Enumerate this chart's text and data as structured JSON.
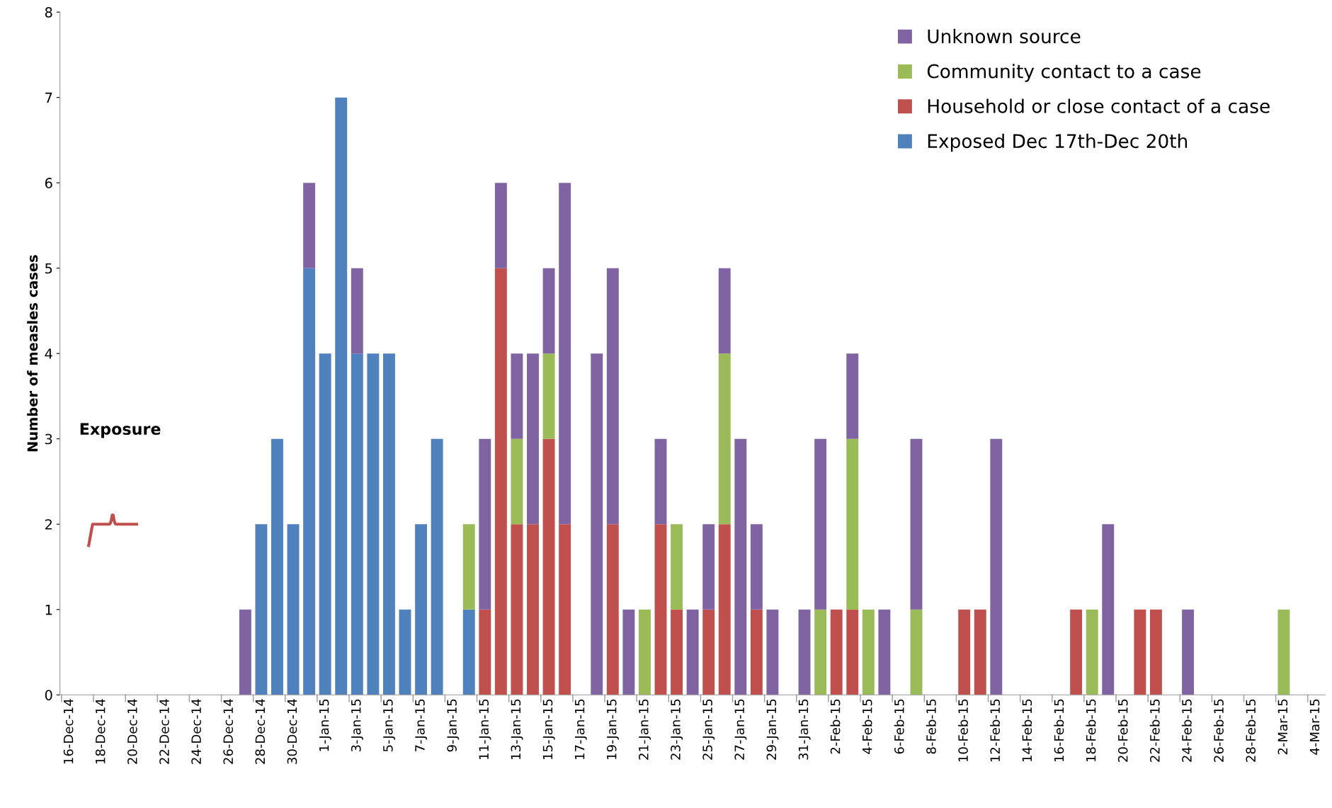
{
  "chart_data": {
    "type": "bar",
    "stacked": true,
    "ylabel": "Number of measles cases",
    "categories": [
      "16-Dec-14",
      null,
      "18-Dec-14",
      null,
      "20-Dec-14",
      null,
      "22-Dec-14",
      null,
      "24-Dec-14",
      null,
      "26-Dec-14",
      null,
      "28-Dec-14",
      null,
      "30-Dec-14",
      null,
      "1-Jan-15",
      null,
      "3-Jan-15",
      null,
      "5-Jan-15",
      null,
      "7-Jan-15",
      null,
      "9-Jan-15",
      null,
      "11-Jan-15",
      null,
      "13-Jan-15",
      null,
      "15-Jan-15",
      null,
      "17-Jan-15",
      null,
      "19-Jan-15",
      null,
      "21-Jan-15",
      null,
      "23-Jan-15",
      null,
      "25-Jan-15",
      null,
      "27-Jan-15",
      null,
      "29-Jan-15",
      null,
      "31-Jan-15",
      null,
      "2-Feb-15",
      null,
      "4-Feb-15",
      null,
      "6-Feb-15",
      null,
      "8-Feb-15",
      null,
      "10-Feb-15",
      null,
      "12-Feb-15",
      null,
      "14-Feb-15",
      null,
      "16-Feb-15",
      null,
      "18-Feb-15",
      null,
      "20-Feb-15",
      null,
      "22-Feb-15",
      null,
      "24-Feb-15",
      null,
      "26-Feb-15",
      null,
      "28-Feb-15",
      null,
      "2-Mar-15",
      null,
      "4-Mar-15"
    ],
    "series": [
      {
        "name": "Exposed Dec 17th-Dec 20th",
        "color": "#4f81bd",
        "values": [
          0,
          0,
          0,
          0,
          0,
          0,
          0,
          0,
          0,
          0,
          0,
          0,
          2,
          3,
          2,
          5,
          4,
          7,
          4,
          4,
          4,
          1,
          2,
          3,
          0,
          1,
          0,
          0,
          0,
          0,
          0,
          0,
          0,
          0,
          0,
          0,
          0,
          0,
          0,
          0,
          0,
          0,
          0,
          0,
          0,
          0,
          0,
          0,
          0,
          0,
          0,
          0,
          0,
          0,
          0,
          0,
          0,
          0,
          0,
          0,
          0,
          0,
          0,
          0,
          0,
          0,
          0,
          0,
          0,
          0,
          0,
          0,
          0,
          0,
          0,
          0,
          0,
          0,
          0
        ]
      },
      {
        "name": "Household or close contact of a case",
        "color": "#c0504d",
        "values": [
          0,
          0,
          0,
          0,
          0,
          0,
          0,
          0,
          0,
          0,
          0,
          0,
          0,
          0,
          0,
          0,
          0,
          0,
          0,
          0,
          0,
          0,
          0,
          0,
          0,
          0,
          1,
          5,
          2,
          2,
          3,
          2,
          0,
          0,
          2,
          0,
          0,
          2,
          1,
          0,
          1,
          2,
          0,
          1,
          0,
          0,
          0,
          0,
          1,
          1,
          0,
          0,
          0,
          0,
          0,
          0,
          1,
          1,
          0,
          0,
          0,
          0,
          0,
          1,
          0,
          0,
          0,
          1,
          1,
          0,
          0,
          0,
          0,
          0,
          0,
          0,
          0,
          0,
          0
        ]
      },
      {
        "name": "Community contact to a case",
        "color": "#9bbb59",
        "values": [
          0,
          0,
          0,
          0,
          0,
          0,
          0,
          0,
          0,
          0,
          0,
          0,
          0,
          0,
          0,
          0,
          0,
          0,
          0,
          0,
          0,
          0,
          0,
          0,
          0,
          1,
          0,
          0,
          1,
          0,
          1,
          0,
          0,
          0,
          0,
          0,
          1,
          0,
          1,
          0,
          0,
          2,
          0,
          0,
          0,
          0,
          0,
          1,
          0,
          2,
          1,
          0,
          0,
          1,
          0,
          0,
          0,
          0,
          0,
          0,
          0,
          0,
          0,
          0,
          1,
          0,
          0,
          0,
          0,
          0,
          0,
          0,
          0,
          0,
          0,
          0,
          1,
          0,
          0
        ]
      },
      {
        "name": "Unknown source",
        "color": "#8064a2",
        "values": [
          0,
          0,
          0,
          0,
          0,
          0,
          0,
          0,
          0,
          0,
          0,
          1,
          0,
          0,
          0,
          1,
          0,
          0,
          1,
          0,
          0,
          0,
          0,
          0,
          0,
          0,
          2,
          1,
          1,
          2,
          1,
          4,
          0,
          4,
          3,
          1,
          0,
          1,
          0,
          1,
          1,
          1,
          3,
          1,
          1,
          0,
          1,
          2,
          0,
          1,
          0,
          1,
          0,
          2,
          0,
          0,
          0,
          0,
          3,
          0,
          0,
          0,
          0,
          0,
          0,
          2,
          0,
          0,
          0,
          0,
          1,
          0,
          0,
          0,
          0,
          0,
          0,
          0,
          0
        ]
      }
    ],
    "ylim": [
      0,
      8
    ],
    "yticks": [
      0,
      1,
      2,
      3,
      4,
      5,
      6,
      7,
      8
    ],
    "grid": false,
    "legend": "top right",
    "annotations": [
      "Exposure"
    ]
  }
}
